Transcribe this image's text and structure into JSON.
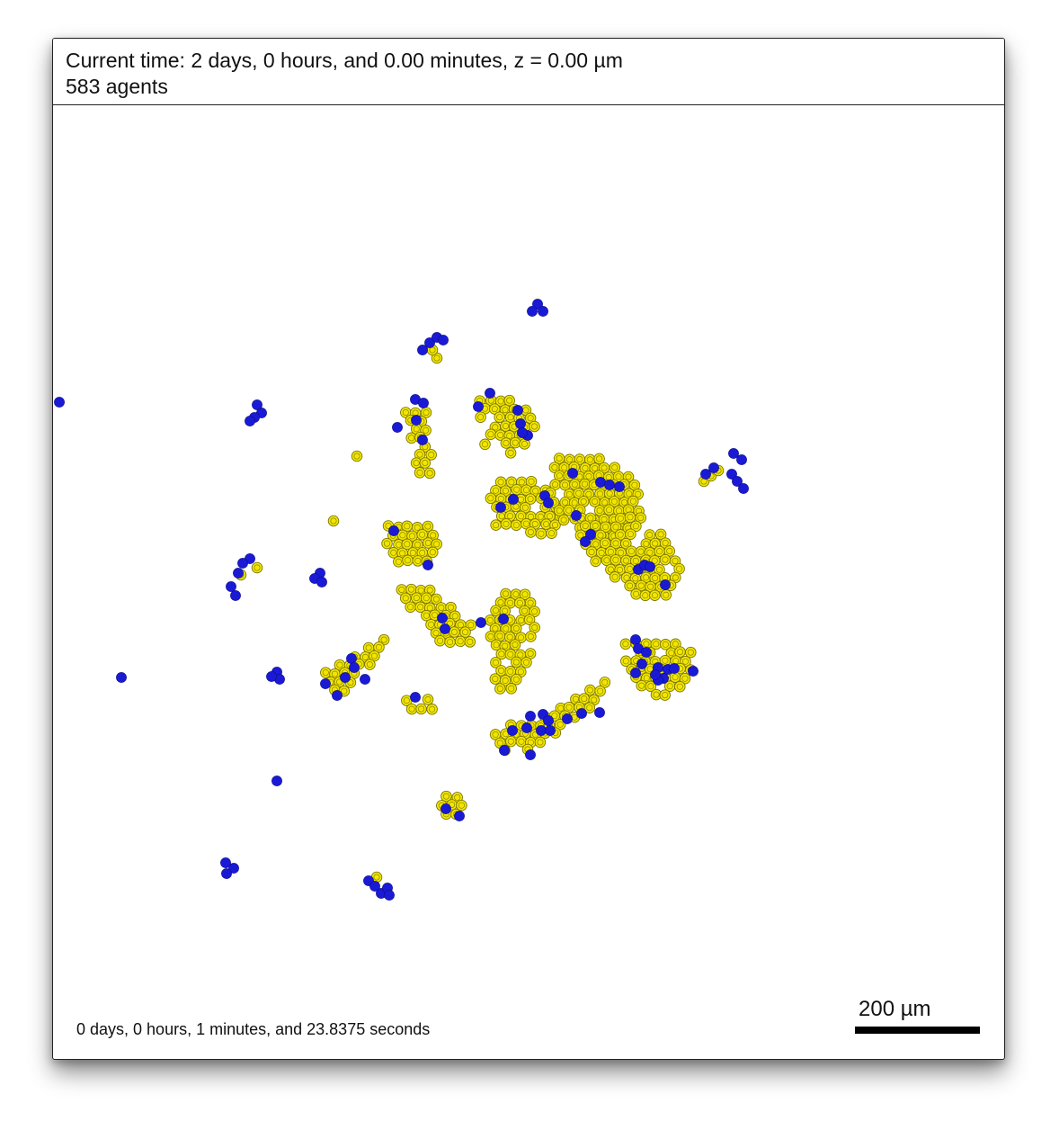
{
  "header": {
    "current_time": "Current time: 2 days, 0 hours, and 0.00 minutes, z = 0.00 µm",
    "agent_count": "583 agents"
  },
  "footer": {
    "elapsed": "0 days, 0 hours, 1 minutes, and 23.8375 seconds"
  },
  "scale_bar": {
    "label": "200 µm"
  },
  "colors": {
    "yellow_agent": "#f2e600",
    "yellow_outline": "#7a7400",
    "blue_agent": "#1a1ad6",
    "background": "#ffffff"
  }
}
